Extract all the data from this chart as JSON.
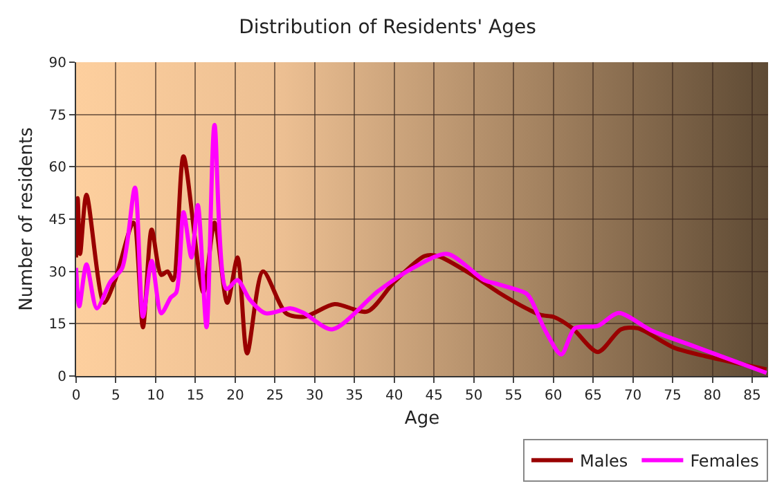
{
  "chart_data": {
    "type": "line",
    "title": "Distribution of Residents' Ages",
    "xlabel": "Age",
    "ylabel": "Number of residents",
    "xlim": [
      0,
      87
    ],
    "xticks": [
      0,
      5,
      10,
      15,
      20,
      25,
      30,
      35,
      40,
      45,
      50,
      55,
      60,
      65,
      70,
      75,
      80,
      85
    ],
    "ylim": [
      0,
      90
    ],
    "yticks": [
      0,
      15,
      30,
      45,
      60,
      75,
      90
    ],
    "grid": true,
    "legend": "bottom right",
    "series": [
      {
        "name": "Males",
        "color": "#990000",
        "x": [
          0,
          0.2,
          0.5,
          1.3,
          3.5,
          4.9,
          7.2,
          8.4,
          9.5,
          10.7,
          11.5,
          12.2,
          13.5,
          16,
          17.4,
          19,
          20.3,
          21.5,
          23.5,
          26.4,
          28.7,
          32.5,
          36.6,
          40,
          43.8,
          45.5,
          50,
          53.1,
          56.6,
          58.4,
          60.1,
          62.4,
          65.6,
          68.5,
          70.6,
          75.2,
          79.3,
          86.8
        ],
        "values": [
          34,
          51,
          35,
          52,
          21,
          27.5,
          44,
          14,
          42,
          29,
          30,
          27.5,
          63,
          24,
          44,
          21,
          34,
          6.5,
          30,
          18,
          17,
          20.6,
          18.5,
          27,
          34.4,
          34.4,
          28.7,
          24,
          19.4,
          17.5,
          16.9,
          13.7,
          6.9,
          13.4,
          13.7,
          8.1,
          5.6,
          1.9
        ]
      },
      {
        "name": "Females",
        "color": "#ff00ff",
        "x": [
          0,
          0.4,
          1.3,
          2.6,
          4.3,
          5.8,
          7.4,
          8.4,
          9.5,
          10.7,
          11.9,
          12.6,
          13.5,
          14.5,
          15.3,
          16.4,
          17.4,
          18.9,
          20.3,
          21.8,
          23.8,
          27,
          28.7,
          32.2,
          38,
          42.6,
          46.7,
          51.3,
          53.1,
          56.6,
          57.2,
          59,
          61,
          62.7,
          65.6,
          68.2,
          72.3,
          77.5,
          86.8
        ],
        "values": [
          31,
          20,
          32,
          19.4,
          27,
          31,
          54,
          17,
          33,
          18,
          22.5,
          24,
          47,
          34,
          49,
          14,
          72,
          25,
          27.5,
          22,
          18,
          19.4,
          18,
          13.4,
          24.4,
          31.3,
          35,
          27.5,
          26.3,
          23.7,
          21.9,
          13,
          6.2,
          13.7,
          14.4,
          18.1,
          13.1,
          8.7,
          0.9
        ]
      }
    ]
  }
}
